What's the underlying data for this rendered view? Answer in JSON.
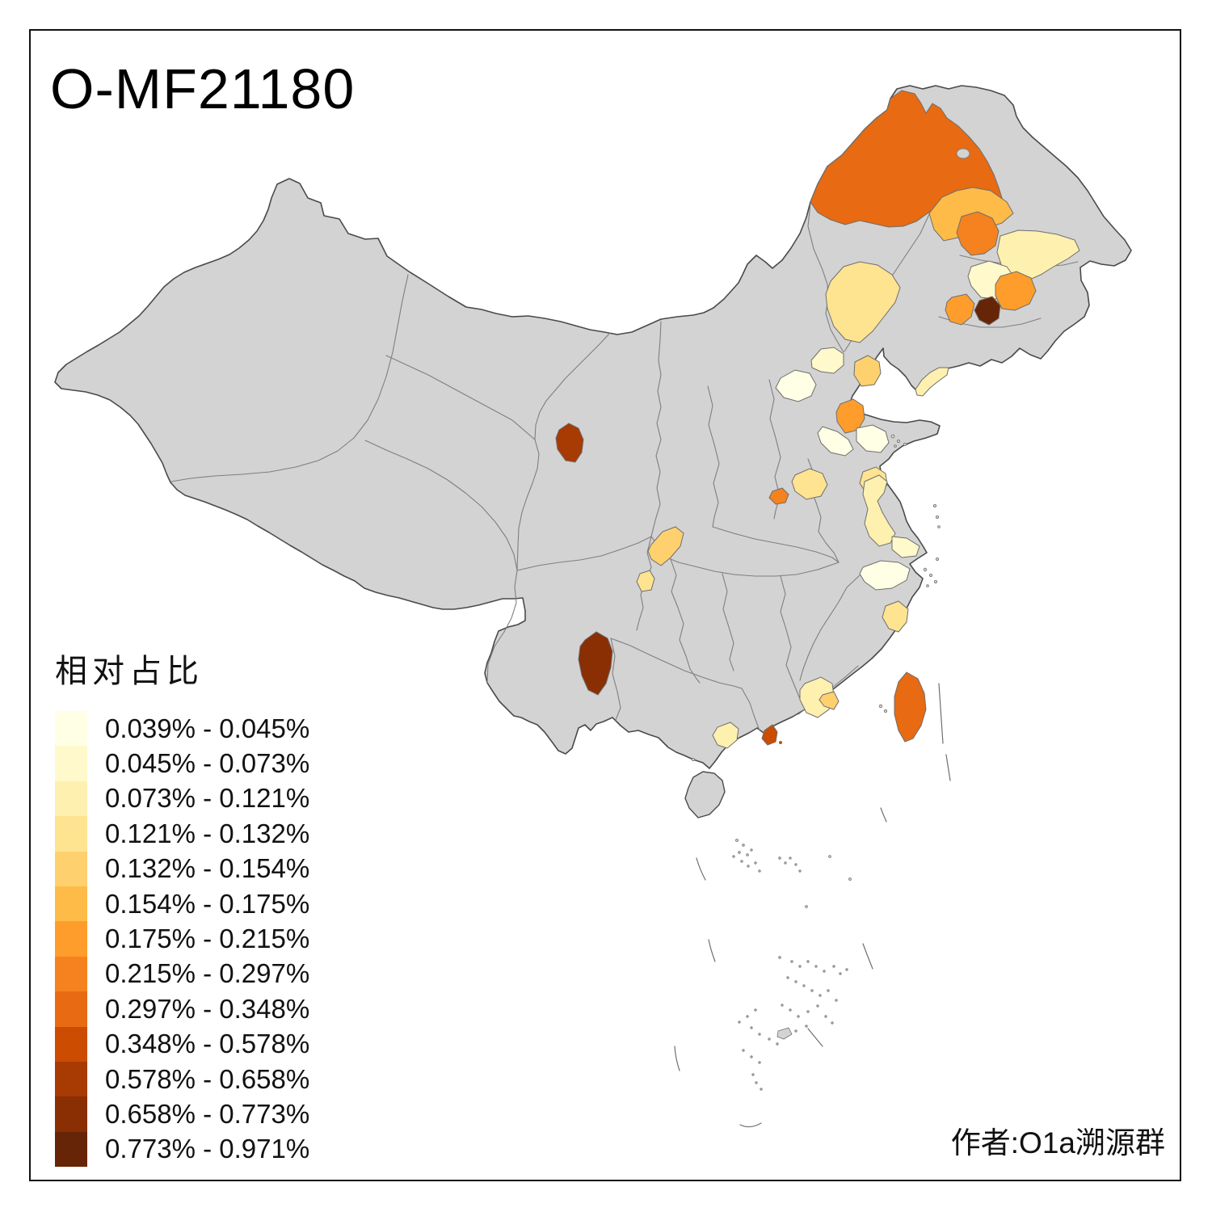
{
  "title": "O-MF21180",
  "attribution": "作者:O1a溯源群",
  "legend": {
    "title": "相对占比",
    "items": [
      {
        "label": "0.039% - 0.045%",
        "color": "#FFFFE5"
      },
      {
        "label": "0.045% - 0.073%",
        "color": "#FFF9CB"
      },
      {
        "label": "0.073% - 0.121%",
        "color": "#FEF0AF"
      },
      {
        "label": "0.121% - 0.132%",
        "color": "#FEE391"
      },
      {
        "label": "0.132% - 0.154%",
        "color": "#FED16E"
      },
      {
        "label": "0.154% - 0.175%",
        "color": "#FEBB47"
      },
      {
        "label": "0.175% - 0.215%",
        "color": "#FE9D2B"
      },
      {
        "label": "0.215% - 0.297%",
        "color": "#F5821E"
      },
      {
        "label": "0.297% - 0.348%",
        "color": "#E86A12"
      },
      {
        "label": "0.348% - 0.578%",
        "color": "#CC4C02"
      },
      {
        "label": "0.578% - 0.658%",
        "color": "#A83A03"
      },
      {
        "label": "0.658% - 0.773%",
        "color": "#8A2E04"
      },
      {
        "label": "0.773% - 0.971%",
        "color": "#662506"
      }
    ]
  },
  "map": {
    "land_color": "#D3D3D3",
    "border_color": "#4A4A4A",
    "inner_border_color": "#7F7F7F",
    "sea_color": "#FFFFFF",
    "regions": [
      {
        "name": "region-ne-hulunbuir-area",
        "range": "0.297% - 0.348%",
        "color": "#E86A12"
      },
      {
        "name": "region-ne-band",
        "range": "0.154% - 0.175%",
        "color": "#FEBB47"
      },
      {
        "name": "region-ne-qiqihar-area",
        "range": "0.215% - 0.297%",
        "color": "#F5821E"
      },
      {
        "name": "region-ne-east-pale",
        "range": "0.073% - 0.121%",
        "color": "#FEF0AF"
      },
      {
        "name": "region-ne-cream",
        "range": "0.045% - 0.073%",
        "color": "#FFF9CB"
      },
      {
        "name": "region-ne-orange-east",
        "range": "0.175% - 0.215%",
        "color": "#FE9D2B"
      },
      {
        "name": "region-ne-darkest",
        "range": "0.773% - 0.971%",
        "color": "#662506"
      },
      {
        "name": "region-ne-orange-west",
        "range": "0.175% - 0.215%",
        "color": "#FE9D2B"
      },
      {
        "name": "region-ne-west-pale",
        "range": "0.121% - 0.132%",
        "color": "#FEE391"
      },
      {
        "name": "region-beijing-pale",
        "range": "0.045% - 0.073%",
        "color": "#FFF9CB"
      },
      {
        "name": "region-northwest-cream",
        "range": "0.039% - 0.045%",
        "color": "#FFFFE5"
      },
      {
        "name": "region-tangshan-area",
        "range": "0.132% - 0.154%",
        "color": "#FED16E"
      },
      {
        "name": "region-liaodong-pale",
        "range": "0.073% - 0.121%",
        "color": "#FEF0AF"
      },
      {
        "name": "region-hebei-orange",
        "range": "0.175% - 0.215%",
        "color": "#FE9D2B"
      },
      {
        "name": "region-hebei-cream-a",
        "range": "0.039% - 0.045%",
        "color": "#FFFFE5"
      },
      {
        "name": "region-hebei-cream-b",
        "range": "0.039% - 0.045%",
        "color": "#FFFFE5"
      },
      {
        "name": "region-shandong-sw",
        "range": "0.121% - 0.132%",
        "color": "#FEE391"
      },
      {
        "name": "region-shandong-se",
        "range": "0.121% - 0.132%",
        "color": "#FEE391"
      },
      {
        "name": "region-henan-orange",
        "range": "0.215% - 0.297%",
        "color": "#F5821E"
      },
      {
        "name": "region-qinghai-dark-red",
        "range": "0.578% - 0.658%",
        "color": "#A83A03"
      },
      {
        "name": "region-shaanxi-south",
        "range": "0.132% - 0.154%",
        "color": "#FED16E"
      },
      {
        "name": "region-chongqing-pale",
        "range": "0.121% - 0.132%",
        "color": "#FEE391"
      },
      {
        "name": "region-jiangsu-yellow",
        "range": "0.073% - 0.121%",
        "color": "#FEF0AF"
      },
      {
        "name": "region-shanghai-cream",
        "range": "0.045% - 0.073%",
        "color": "#FFF9CB"
      },
      {
        "name": "region-zhejiang-cream",
        "range": "0.039% - 0.045%",
        "color": "#FFFFE5"
      },
      {
        "name": "region-zhejiang-south",
        "range": "0.121% - 0.132%",
        "color": "#FEE391"
      },
      {
        "name": "region-yunnan-dark-brown",
        "range": "0.658% - 0.773%",
        "color": "#8A2E04"
      },
      {
        "name": "region-guangdong-ne-pale",
        "range": "0.073% - 0.121%",
        "color": "#FEF0AF"
      },
      {
        "name": "region-guangdong-ne-sub",
        "range": "0.132% - 0.154%",
        "color": "#FED16E"
      },
      {
        "name": "region-guangdong-sw-pale",
        "range": "0.073% - 0.121%",
        "color": "#FEF0AF"
      },
      {
        "name": "region-pearl-delta-red",
        "range": "0.348% - 0.578%",
        "color": "#CC4C02"
      },
      {
        "name": "region-taiwan",
        "range": "0.297% - 0.348%",
        "color": "#E86A12"
      }
    ]
  }
}
